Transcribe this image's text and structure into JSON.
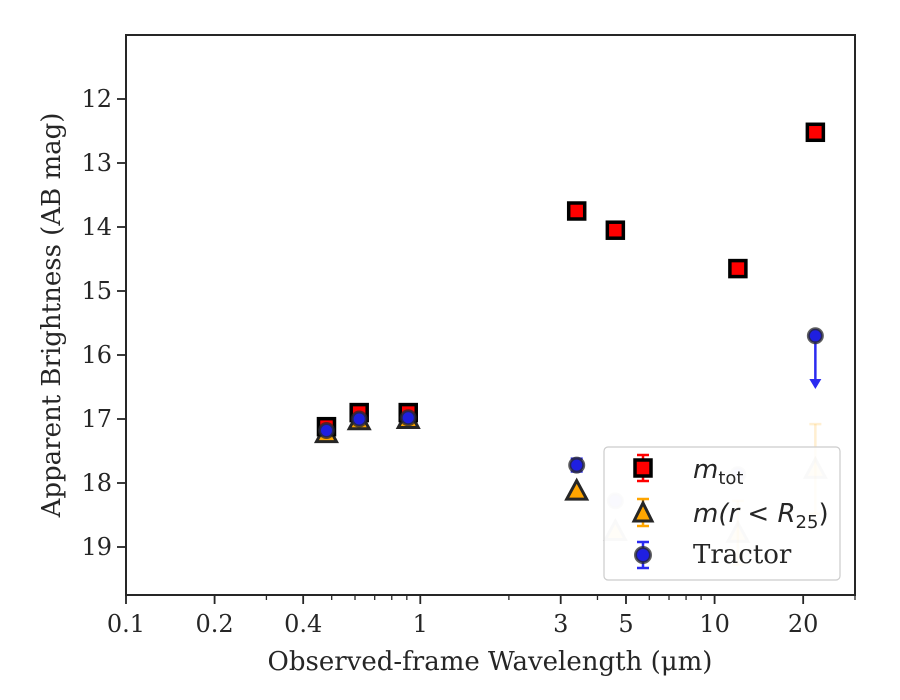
{
  "chart_data": {
    "type": "scatter",
    "xlabel": "Observed-frame Wavelength (μm)",
    "ylabel": "Apparent Brightness (AB mag)",
    "xscale": "log",
    "xlim": [
      0.1,
      30
    ],
    "ylim": [
      19.75,
      11.0
    ],
    "y_inverted": true,
    "x_ticks": [
      0.1,
      0.2,
      0.4,
      1,
      3,
      5,
      10,
      20
    ],
    "x_tick_labels": [
      "0.1",
      "0.2",
      "0.4",
      "1",
      "3",
      "5",
      "10",
      "20"
    ],
    "y_ticks": [
      12,
      13,
      14,
      15,
      16,
      17,
      18,
      19
    ],
    "y_tick_labels": [
      "12",
      "13",
      "14",
      "15",
      "16",
      "17",
      "18",
      "19"
    ],
    "legend_position": "lower-right",
    "legend": {
      "m_tot": {
        "base": "m",
        "sub": "tot"
      },
      "m_r25": {
        "prefix": "m",
        "inner": "(r < R",
        "sub": "25",
        "suffix": ")"
      },
      "tractor": "Tractor"
    },
    "series": [
      {
        "key": "m_tot",
        "marker": "square",
        "face_color": "#ff0000",
        "edge_color": "#000000",
        "points": [
          {
            "x": 0.48,
            "y": 17.12
          },
          {
            "x": 0.62,
            "y": 16.9
          },
          {
            "x": 0.91,
            "y": 16.9
          },
          {
            "x": 3.4,
            "y": 13.75
          },
          {
            "x": 4.6,
            "y": 14.05
          },
          {
            "x": 12.0,
            "y": 14.65
          },
          {
            "x": 22.0,
            "y": 12.52
          }
        ]
      },
      {
        "key": "m_r25",
        "marker": "triangle",
        "face_color": "#ffa500",
        "edge_color": "#262626",
        "points": [
          {
            "x": 0.48,
            "y": 17.22,
            "faded": false
          },
          {
            "x": 0.62,
            "y": 17.02,
            "faded": false
          },
          {
            "x": 0.91,
            "y": 17.0,
            "faded": false
          },
          {
            "x": 3.4,
            "y": 18.12,
            "faded": false
          },
          {
            "x": 4.6,
            "y": 18.75,
            "faded": true
          },
          {
            "x": 12.0,
            "y": 18.78,
            "faded": true,
            "yerr": 0.5
          },
          {
            "x": 22.0,
            "y": 17.78,
            "faded": true,
            "yerr": 0.7
          }
        ]
      },
      {
        "key": "tractor",
        "marker": "circle",
        "face_color": "#1f1fe0",
        "edge_color": "#2a2a2a",
        "points": [
          {
            "x": 0.48,
            "y": 17.18,
            "faded": false
          },
          {
            "x": 0.62,
            "y": 17.0,
            "faded": false
          },
          {
            "x": 0.91,
            "y": 16.98,
            "faded": false
          },
          {
            "x": 3.4,
            "y": 17.72,
            "faded": false,
            "yerr": 0.1
          },
          {
            "x": 4.6,
            "y": 18.28,
            "faded": true
          },
          {
            "x": 12.0,
            "y": 17.87,
            "faded": true
          },
          {
            "x": 22.0,
            "y": 15.7,
            "faded": false,
            "upper_limit": true
          }
        ]
      }
    ],
    "colors": {
      "axes": "#262626",
      "errorbar_blue": "#2b2bf0",
      "errorbar_orange": "#ffa500"
    }
  }
}
